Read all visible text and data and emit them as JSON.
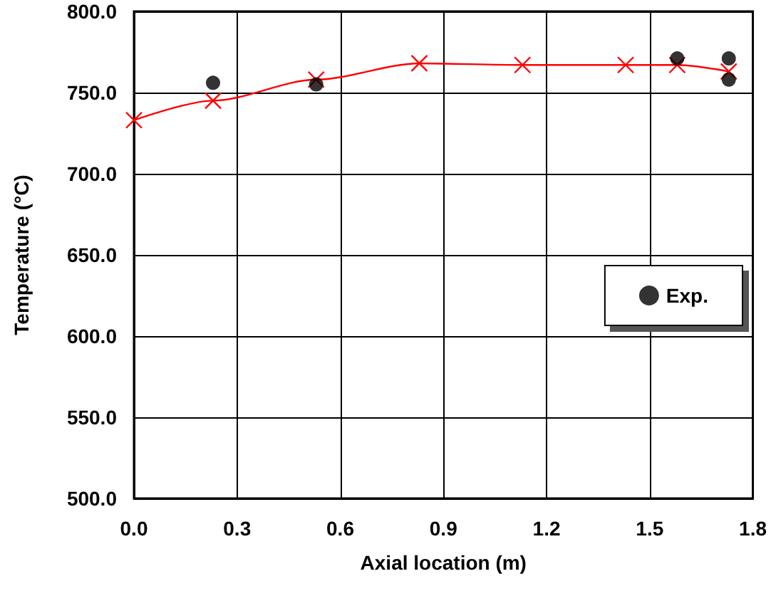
{
  "chart_data": {
    "type": "scatter",
    "xlabel": "Axial location (m)",
    "ylabel": "Temperature (°C)",
    "xlim": [
      0,
      1.8
    ],
    "xticks": [
      {
        "value": 0,
        "label": "0.0"
      },
      {
        "value": 0.3,
        "label": "0.3"
      },
      {
        "value": 0.6,
        "label": "0.6"
      },
      {
        "value": 0.9,
        "label": "0.9"
      },
      {
        "value": 1.2,
        "label": "1.2"
      },
      {
        "value": 1.5,
        "label": "1.5"
      },
      {
        "value": 1.8,
        "label": "1.8"
      }
    ],
    "ylim": [
      500,
      800
    ],
    "yticks": [
      {
        "value": 500,
        "label": "500.0"
      },
      {
        "value": 550,
        "label": "550.0"
      },
      {
        "value": 600,
        "label": "600.0"
      },
      {
        "value": 650,
        "label": "650.0"
      },
      {
        "value": 700,
        "label": "700.0"
      },
      {
        "value": 750,
        "label": "750.0"
      },
      {
        "value": 800,
        "label": "800.0"
      }
    ],
    "grid": true,
    "legend": "right",
    "series": [
      {
        "name": "Exp.",
        "marker": "circle",
        "color": "#000000",
        "x": [
          0.23,
          0.53,
          1.58,
          1.73,
          1.73
        ],
        "values": [
          756,
          755,
          771,
          771,
          758
        ]
      },
      {
        "type": "line",
        "marker": "cross",
        "color": "#ff0000",
        "x": [
          0,
          0.23,
          0.53,
          0.83,
          1.13,
          1.43,
          1.58,
          1.73
        ],
        "values": [
          733,
          745,
          758,
          768,
          767,
          767,
          767,
          763
        ]
      }
    ]
  }
}
